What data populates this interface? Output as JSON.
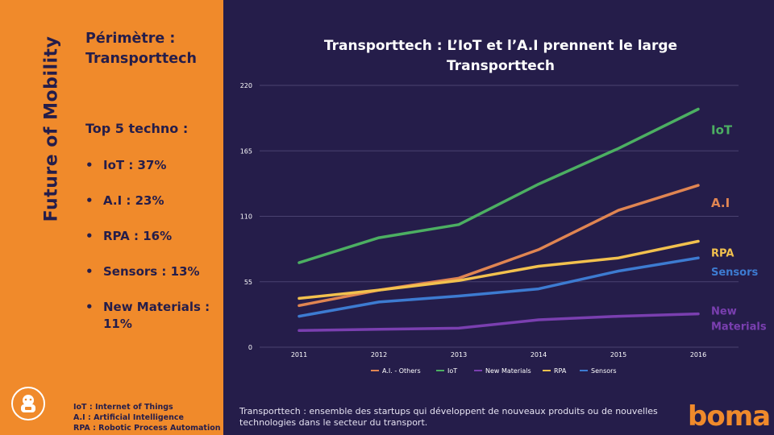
{
  "sidebar": {
    "vertical_title": "Future of Mobility",
    "perimetre": "Périmètre : Transporttech",
    "top5_title": "Top 5 techno :",
    "bullets": [
      "IoT : 37%",
      "A.I : 23%",
      "RPA : 16%",
      "Sensors : 13%",
      "New Materials : 11%"
    ],
    "bullet_glyph": "•",
    "abbreviations": [
      "IoT : Internet of Things",
      "A.I : Artificial Intelligence",
      "RPA : Robotic Process Automation"
    ],
    "logo_icon": "robot-icon"
  },
  "main": {
    "chart_title": "Transporttech : L’IoT et l’A.I prennent le large Transporttech",
    "footnote": "Transporttech : ensemble des startups qui développent de nouveaux produits ou de nouvelles technologies dans le secteur du transport.",
    "brand": "boma"
  },
  "colors": {
    "background": "#251d4a",
    "sidebar": "#f08a2b",
    "iot": "#4caf62",
    "ai": "#e08552",
    "rpa": "#f2c14e",
    "sensors": "#3d7bd1",
    "new_materials": "#7a3fb0"
  },
  "chart_data": {
    "type": "line",
    "title": "Transporttech : L’IoT et l’A.I prennent le large Transporttech",
    "categories": [
      "2011",
      "2012",
      "2013",
      "2014",
      "2015",
      "2016"
    ],
    "ylim": [
      0,
      220
    ],
    "yticks": [
      "0",
      "55",
      "110",
      "165",
      "220"
    ],
    "grid": true,
    "series": [
      {
        "name": "A.I. - Others",
        "end_label": "A.I",
        "color": "#e08552",
        "values": [
          35,
          48,
          58,
          82,
          115,
          136
        ]
      },
      {
        "name": "IoT",
        "end_label": "IoT",
        "color": "#4caf62",
        "values": [
          71,
          92,
          103,
          137,
          167,
          200
        ]
      },
      {
        "name": "New Materials",
        "end_label": "New Materials",
        "color": "#7a3fb0",
        "values": [
          14,
          15,
          16,
          23,
          26,
          28
        ]
      },
      {
        "name": "RPA",
        "end_label": "RPA",
        "color": "#f2c14e",
        "values": [
          41,
          48,
          56,
          68,
          75,
          89
        ]
      },
      {
        "name": "Sensors",
        "end_label": "Sensors",
        "color": "#3d7bd1",
        "values": [
          26,
          38,
          43,
          49,
          64,
          75
        ]
      }
    ],
    "legend_position": "bottom"
  }
}
